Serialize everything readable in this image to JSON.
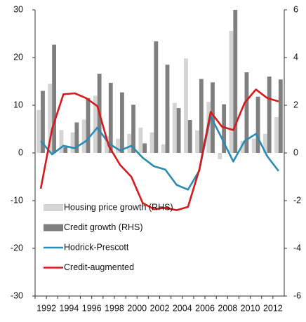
{
  "chart_data": {
    "type": "bar-line",
    "categories": [
      "1992",
      null,
      "1994",
      null,
      "1996",
      null,
      "1998",
      null,
      "2000",
      null,
      "2002",
      null,
      "2004",
      null,
      "2006",
      null,
      "2008",
      null,
      "2010",
      null,
      "2012",
      null
    ],
    "series": [
      {
        "name": "Housing price growth (RHS)",
        "type": "bar",
        "axis": "y2",
        "color": "#d4d4d4",
        "values": [
          1.8,
          2.9,
          0.96,
          0.86,
          1.4,
          2.4,
          0.7,
          0.6,
          0.8,
          1.06,
          0.86,
          0.36,
          2.1,
          3.96,
          0.94,
          2.14,
          -0.26,
          5.12,
          0.5,
          0.6,
          0.8,
          1.5
        ]
      },
      {
        "name": "Credit growth (RHS)",
        "type": "bar",
        "axis": "y2",
        "color": "#7f7f7f",
        "values": [
          2.6,
          4.54,
          0.24,
          1.28,
          2.3,
          3.32,
          2.94,
          2.54,
          2.02,
          0.4,
          4.68,
          3.7,
          1.88,
          1.38,
          3.1,
          2.96,
          2.04,
          6,
          3.38,
          2.36,
          3.2,
          3.08
        ]
      },
      {
        "name": "Hodrick-Prescott",
        "type": "line",
        "color": "#2a8bb3",
        "values": [
          2.5,
          -0.3,
          1.5,
          1,
          2.5,
          5.3,
          2,
          0.5,
          1.5,
          -1,
          -2.8,
          -3.5,
          -6.7,
          -7.7,
          -3.7,
          7.7,
          3,
          -1.8,
          2.5,
          4,
          -0.7,
          -3.8
        ]
      },
      {
        "name": "Credit-augmented",
        "type": "line",
        "color": "#d7191c",
        "values": [
          -7.5,
          5,
          12.3,
          12.5,
          11.5,
          9.8,
          1.5,
          -2.5,
          -5,
          -10.5,
          -11.8,
          -11.5,
          -12,
          -11.3,
          -3.5,
          8.6,
          5.5,
          4.8,
          10.5,
          13.3,
          11.5,
          10.8
        ]
      }
    ],
    "ylim": [
      -30,
      30
    ],
    "yticks": [
      -30,
      -20,
      -10,
      0,
      10,
      20,
      30
    ],
    "y2lim": [
      -6,
      6
    ],
    "y2ticks": [
      -6,
      -4,
      -2,
      0,
      2,
      4,
      6
    ],
    "legend": "lower-left",
    "grid": false
  }
}
